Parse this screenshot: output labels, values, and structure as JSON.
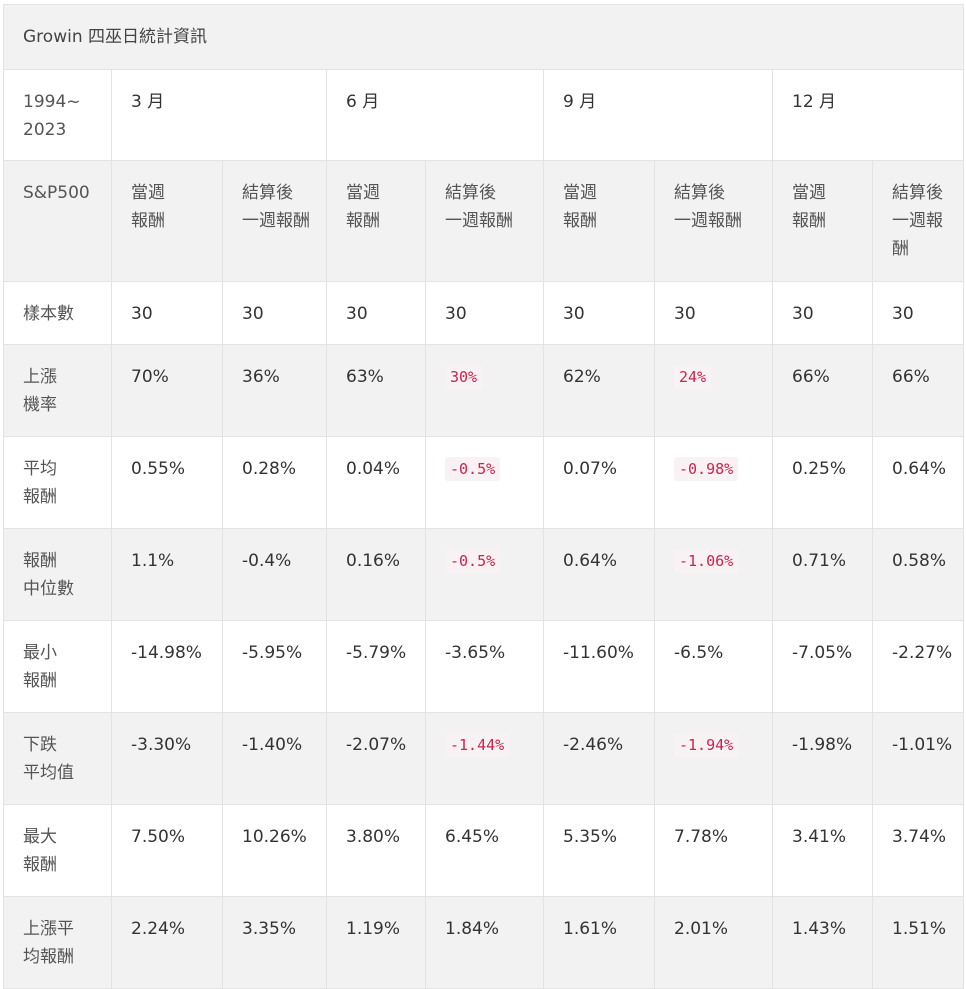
{
  "caption": "Growin 四巫日統計資訊",
  "year_range": "1994~\n2023",
  "months": [
    "3 月",
    "6 月",
    "9 月",
    "12 月"
  ],
  "index_label": "S&P500",
  "subheaders": [
    "當週\n報酬",
    "結算後\n一週報酬",
    "當週\n報酬",
    "結算後\n一週報酬",
    "當週\n報酬",
    "結算後\n一週報酬",
    "當週\n報酬",
    "結算後\n一週報酬"
  ],
  "rows": [
    {
      "label": "樣本數",
      "cells": [
        "30",
        "30",
        "30",
        "30",
        "30",
        "30",
        "30",
        "30"
      ],
      "highlight": [
        false,
        false,
        false,
        false,
        false,
        false,
        false,
        false
      ]
    },
    {
      "label": "上漲\n機率",
      "cells": [
        "70%",
        "36%",
        "63%",
        "30%",
        "62%",
        "24%",
        "66%",
        "66%"
      ],
      "highlight": [
        false,
        false,
        false,
        true,
        false,
        true,
        false,
        false
      ]
    },
    {
      "label": "平均\n報酬",
      "cells": [
        "0.55%",
        "0.28%",
        "0.04%",
        "-0.5%",
        "0.07%",
        "-0.98%",
        "0.25%",
        "0.64%"
      ],
      "highlight": [
        false,
        false,
        false,
        true,
        false,
        true,
        false,
        false
      ]
    },
    {
      "label": "報酬\n中位數",
      "cells": [
        "1.1%",
        "-0.4%",
        "0.16%",
        "-0.5%",
        "0.64%",
        "-1.06%",
        "0.71%",
        "0.58%"
      ],
      "highlight": [
        false,
        false,
        false,
        true,
        false,
        true,
        false,
        false
      ]
    },
    {
      "label": "最小\n報酬",
      "cells": [
        "-14.98%",
        "-5.95%",
        "-5.79%",
        "-3.65%",
        "-11.60%",
        "-6.5%",
        "-7.05%",
        "-2.27%"
      ],
      "highlight": [
        false,
        false,
        false,
        false,
        false,
        false,
        false,
        false
      ]
    },
    {
      "label": "下跌\n平均值",
      "cells": [
        "-3.30%",
        "-1.40%",
        "-2.07%",
        "-1.44%",
        "-2.46%",
        "-1.94%",
        "-1.98%",
        "-1.01%"
      ],
      "highlight": [
        false,
        false,
        false,
        true,
        false,
        true,
        false,
        false
      ]
    },
    {
      "label": "最大\n報酬",
      "cells": [
        "7.50%",
        "10.26%",
        "3.80%",
        "6.45%",
        "5.35%",
        "7.78%",
        "3.41%",
        "3.74%"
      ],
      "highlight": [
        false,
        false,
        false,
        false,
        false,
        false,
        false,
        false
      ]
    },
    {
      "label": "上漲平\n均報酬",
      "cells": [
        "2.24%",
        "3.35%",
        "1.19%",
        "1.84%",
        "1.61%",
        "2.01%",
        "1.43%",
        "1.51%"
      ],
      "highlight": [
        false,
        false,
        false,
        false,
        false,
        false,
        false,
        false
      ]
    }
  ]
}
